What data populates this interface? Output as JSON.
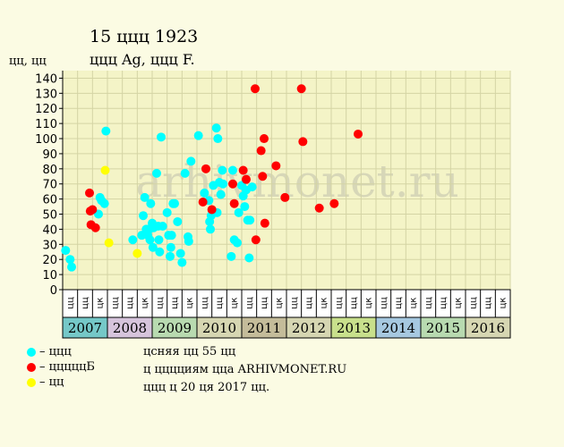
{
  "header": {
    "title": "15 ццц 1923",
    "subtitle": "ццц Ag, ццц F.",
    "y_unit": "цц, цц"
  },
  "watermark": "arhivmonet.ru",
  "legend": [
    {
      "label": "– ццц",
      "color": "#00ffff"
    },
    {
      "label": "– цццццБ",
      "color": "#ff0000"
    },
    {
      "label": "– цц",
      "color": "#ffff00"
    }
  ],
  "notes": [
    "цсняя цц 55 цц",
    "ц цццциям цца ARHIVMONET.RU",
    "ццц ц 20 ця 2017 цц."
  ],
  "colors": {
    "background": "#fbfbe3",
    "plot_background": "#f4f4c7",
    "grid": "#d4d4a4",
    "cyan": "#00ffff",
    "red": "#ff0000",
    "yellow": "#ffff00"
  },
  "chart_data": {
    "type": "scatter",
    "title": "15 ццц 1923",
    "subtitle": "ццц Ag, ццц F.",
    "ylabel": "цц, цц",
    "ylim": [
      0,
      145
    ],
    "yticks": [
      0,
      10,
      20,
      30,
      40,
      50,
      60,
      70,
      80,
      90,
      100,
      110,
      120,
      130,
      140
    ],
    "grid": true,
    "legend_position": "bottom-left",
    "quarter_labels": [
      "цц",
      "цц",
      "цк"
    ],
    "years": [
      {
        "label": "2007",
        "color": "#75c8c8"
      },
      {
        "label": "2008",
        "color": "#d6c4dc"
      },
      {
        "label": "2009",
        "color": "#b8dab0"
      },
      {
        "label": "2010",
        "color": "#d6d6b2"
      },
      {
        "label": "2011",
        "color": "#c4bc9a"
      },
      {
        "label": "2012",
        "color": "#d6d6b2"
      },
      {
        "label": "2013",
        "color": "#c8e08c"
      },
      {
        "label": "2014",
        "color": "#a6c8e0"
      },
      {
        "label": "2015",
        "color": "#b8dab0"
      },
      {
        "label": "2016",
        "color": "#d6d6b2"
      }
    ],
    "series": [
      {
        "name": "– ццц",
        "color": "#00ffff",
        "points": [
          [
            0.2,
            26
          ],
          [
            0.5,
            20
          ],
          [
            0.6,
            15
          ],
          [
            2.4,
            50
          ],
          [
            2.5,
            61
          ],
          [
            2.6,
            59
          ],
          [
            2.8,
            57
          ],
          [
            2.9,
            105
          ],
          [
            4.7,
            33
          ],
          [
            5.3,
            36
          ],
          [
            5.4,
            49
          ],
          [
            5.5,
            61
          ],
          [
            5.6,
            40
          ],
          [
            5.7,
            36
          ],
          [
            5.8,
            40
          ],
          [
            5.85,
            33
          ],
          [
            5.9,
            57
          ],
          [
            6.0,
            44
          ],
          [
            6.05,
            28
          ],
          [
            6.1,
            41
          ],
          [
            6.3,
            77
          ],
          [
            6.4,
            42
          ],
          [
            6.45,
            33
          ],
          [
            6.5,
            25
          ],
          [
            6.6,
            101
          ],
          [
            6.7,
            42
          ],
          [
            7.0,
            51
          ],
          [
            7.1,
            36
          ],
          [
            7.2,
            22
          ],
          [
            7.25,
            28
          ],
          [
            7.3,
            36
          ],
          [
            7.4,
            57
          ],
          [
            7.5,
            57
          ],
          [
            7.7,
            45
          ],
          [
            7.9,
            24
          ],
          [
            8.0,
            18
          ],
          [
            8.2,
            77
          ],
          [
            8.4,
            35
          ],
          [
            8.45,
            32
          ],
          [
            8.6,
            85
          ],
          [
            9.1,
            102
          ],
          [
            9.5,
            64
          ],
          [
            9.8,
            59
          ],
          [
            9.85,
            45
          ],
          [
            9.9,
            40
          ],
          [
            9.95,
            49
          ],
          [
            10.1,
            69
          ],
          [
            10.3,
            107
          ],
          [
            10.35,
            51
          ],
          [
            10.4,
            100
          ],
          [
            10.5,
            71
          ],
          [
            10.6,
            63
          ],
          [
            10.7,
            79
          ],
          [
            10.75,
            70
          ],
          [
            11.3,
            22
          ],
          [
            11.4,
            79
          ],
          [
            11.5,
            33
          ],
          [
            11.7,
            31
          ],
          [
            11.8,
            51
          ],
          [
            12.0,
            69
          ],
          [
            12.1,
            62
          ],
          [
            12.2,
            55
          ],
          [
            12.3,
            66
          ],
          [
            12.4,
            46
          ],
          [
            12.5,
            21
          ],
          [
            12.55,
            46
          ],
          [
            12.7,
            68
          ]
        ]
      },
      {
        "name": "– цццццБ",
        "color": "#ff0000",
        "points": [
          [
            1.8,
            64
          ],
          [
            1.85,
            52
          ],
          [
            1.9,
            43
          ],
          [
            2.0,
            53
          ],
          [
            2.2,
            41
          ],
          [
            9.4,
            58
          ],
          [
            9.6,
            80
          ],
          [
            10.0,
            53
          ],
          [
            11.4,
            70
          ],
          [
            11.5,
            57
          ],
          [
            12.1,
            79
          ],
          [
            12.3,
            73
          ],
          [
            12.9,
            133
          ],
          [
            12.95,
            33
          ],
          [
            13.3,
            92
          ],
          [
            13.4,
            75
          ],
          [
            13.5,
            100
          ],
          [
            13.55,
            44
          ],
          [
            14.3,
            82
          ],
          [
            14.9,
            61
          ],
          [
            16.0,
            133
          ],
          [
            16.1,
            98
          ],
          [
            17.2,
            54
          ],
          [
            18.2,
            57
          ],
          [
            19.8,
            103
          ]
        ]
      },
      {
        "name": "– цц",
        "color": "#ffff00",
        "points": [
          [
            2.85,
            79
          ],
          [
            3.1,
            31
          ],
          [
            5.0,
            24
          ]
        ]
      }
    ]
  }
}
